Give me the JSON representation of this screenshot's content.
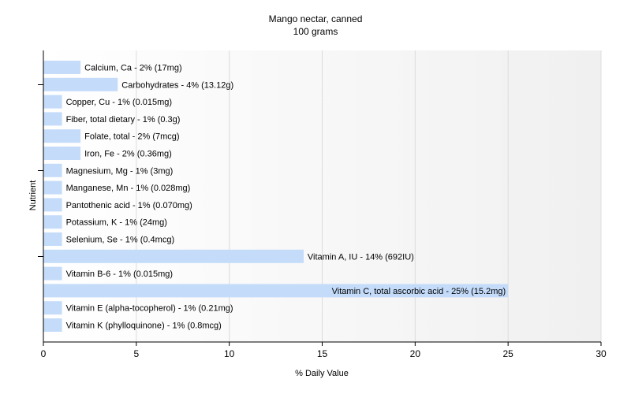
{
  "chart_data": {
    "type": "bar",
    "orientation": "horizontal",
    "title": "Mango nectar, canned",
    "subtitle": "100 grams",
    "xlabel": "% Daily Value",
    "ylabel": "Nutrient",
    "xlim": [
      0,
      30
    ],
    "xticks": [
      0,
      5,
      10,
      15,
      20,
      25,
      30
    ],
    "grid": true,
    "bar_color": "#c4dcfa",
    "categories": [
      "Calcium, Ca",
      "Carbohydrates",
      "Copper, Cu",
      "Fiber, total dietary",
      "Folate, total",
      "Iron, Fe",
      "Magnesium, Mg",
      "Manganese, Mn",
      "Pantothenic acid",
      "Potassium, K",
      "Selenium, Se",
      "Vitamin A, IU",
      "Vitamin B-6",
      "Vitamin C, total ascorbic acid",
      "Vitamin E (alpha-tocopherol)",
      "Vitamin K (phylloquinone)"
    ],
    "values": [
      2,
      4,
      1,
      1,
      2,
      2,
      1,
      1,
      1,
      1,
      1,
      14,
      1,
      25,
      1,
      1
    ],
    "labels": [
      "Calcium, Ca - 2% (17mg)",
      "Carbohydrates - 4% (13.12g)",
      "Copper, Cu - 1% (0.015mg)",
      "Fiber, total dietary - 1% (0.3g)",
      "Folate, total - 2% (7mcg)",
      "Iron, Fe - 2% (0.36mg)",
      "Magnesium, Mg - 1% (3mg)",
      "Manganese, Mn - 1% (0.028mg)",
      "Pantothenic acid - 1% (0.070mg)",
      "Potassium, K - 1% (24mg)",
      "Selenium, Se - 1% (0.4mcg)",
      "Vitamin A, IU - 14% (692IU)",
      "Vitamin B-6 - 1% (0.015mg)",
      "Vitamin C, total ascorbic acid - 25% (15.2mg)",
      "Vitamin E (alpha-tocopherol) - 1% (0.21mg)",
      "Vitamin K (phylloquinone) - 1% (0.8mcg)"
    ]
  }
}
